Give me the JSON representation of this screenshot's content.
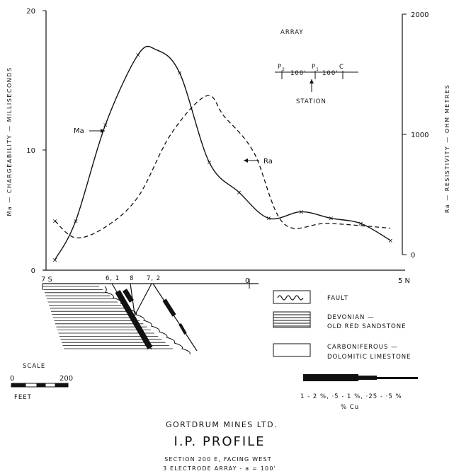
{
  "chart_data": {
    "type": "line",
    "x_range": [
      -7,
      5
    ],
    "x_ticks": [
      {
        "x": -7,
        "label": "7 S"
      },
      {
        "x": 0,
        "label": "0"
      },
      {
        "x": 5,
        "label": "5 N"
      }
    ],
    "y_left": {
      "label": "Ma — CHARGEABILITY — MILLISECONDS",
      "range": [
        0,
        20
      ],
      "ticks": [
        "0",
        "10",
        "20"
      ]
    },
    "y_right": {
      "label": "Ra — RESISTIVITY — OHM METRES",
      "range": [
        0,
        2000
      ],
      "ticks": [
        "0",
        "1000",
        "2000"
      ]
    },
    "series": [
      {
        "name": "Ma",
        "axis": "left",
        "style": "solid",
        "points": [
          {
            "x": -6.7,
            "y": 0.8,
            "marked": true
          },
          {
            "x": -6.0,
            "y": 3.8,
            "marked": true
          },
          {
            "x": -5.0,
            "y": 11.2,
            "marked": true
          },
          {
            "x": -3.9,
            "y": 16.6,
            "marked": true
          },
          {
            "x": -3.3,
            "y": 17.0,
            "marked": false
          },
          {
            "x": -2.5,
            "y": 15.2,
            "marked": true
          },
          {
            "x": -1.5,
            "y": 8.3,
            "marked": true
          },
          {
            "x": -0.5,
            "y": 6.0,
            "marked": true
          },
          {
            "x": 0.5,
            "y": 4.0,
            "marked": true
          },
          {
            "x": 1.6,
            "y": 4.5,
            "marked": true
          },
          {
            "x": 2.6,
            "y": 4.0,
            "marked": true
          },
          {
            "x": 3.6,
            "y": 3.6,
            "marked": true
          },
          {
            "x": 4.6,
            "y": 2.3,
            "marked": true
          }
        ]
      },
      {
        "name": "Ra",
        "axis": "right",
        "style": "dashed",
        "points": [
          {
            "x": -6.7,
            "y": 280,
            "marked": true
          },
          {
            "x": -6.0,
            "y": 140,
            "marked": false
          },
          {
            "x": -5.0,
            "y": 230,
            "marked": false
          },
          {
            "x": -3.9,
            "y": 480,
            "marked": false
          },
          {
            "x": -2.8,
            "y": 1000,
            "marked": false
          },
          {
            "x": -1.6,
            "y": 1320,
            "marked": false
          },
          {
            "x": -1.0,
            "y": 1150,
            "marked": false
          },
          {
            "x": 0.0,
            "y": 850,
            "marked": false
          },
          {
            "x": 1.0,
            "y": 260,
            "marked": false
          },
          {
            "x": 2.5,
            "y": 260,
            "marked": false
          },
          {
            "x": 4.6,
            "y": 220,
            "marked": false
          }
        ]
      }
    ],
    "annotations": [
      {
        "text": "Ma",
        "target": "Ma"
      },
      {
        "text": "Ra",
        "target": "Ra"
      }
    ]
  },
  "array_diagram": {
    "title": "ARRAY",
    "p2_letter": "P",
    "p2_sub": "2",
    "p1_letter": "P",
    "p1_sub": "1",
    "c_label": "C",
    "spacing1": "100'",
    "spacing2": "100'",
    "station_label": "STATION"
  },
  "section": {
    "hole_labels": [
      "6, 1",
      "8",
      "7, 2"
    ],
    "scale_label": "SCALE",
    "scale_start": "0",
    "scale_end": "200",
    "scale_unit": "FEET"
  },
  "legend": {
    "fault": "FAULT",
    "devonian_line1": "DEVONIAN —",
    "devonian_line2": "OLD RED SANDSTONE",
    "carb_line1": "CARBONIFEROUS —",
    "carb_line2": "DOLOMITIC LIMESTONE",
    "cu_ranges": "1 - 2 %, ·5 - 1 %, ·25 - ·5 %",
    "cu_unit": "% Cu"
  },
  "caption": {
    "company": "GORTDRUM MINES LTD.",
    "title": "I.P. PROFILE",
    "section": "SECTION 200 E, FACING WEST",
    "array": "3 ELECTRODE ARRAY - a = 100'"
  }
}
